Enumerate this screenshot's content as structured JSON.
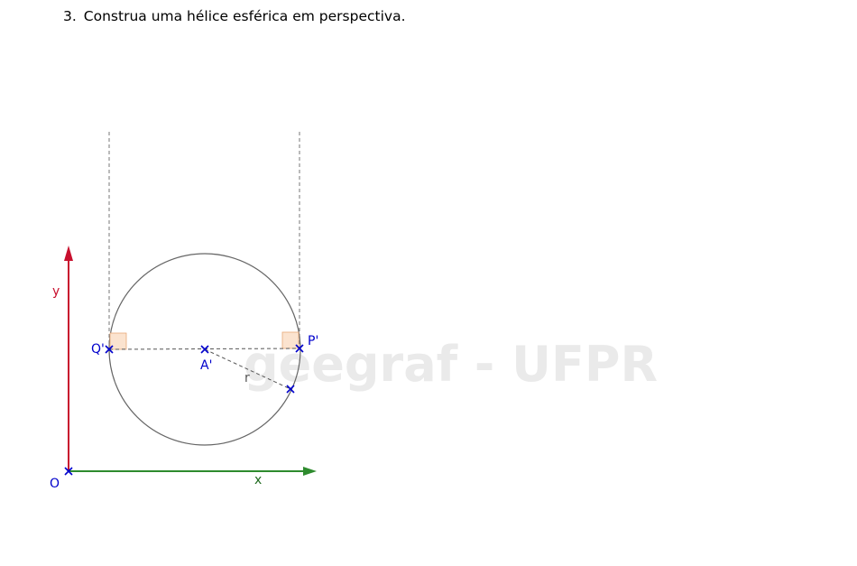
{
  "exercise": {
    "number": "3.",
    "text": "Construa uma hélice esférica em perspectiva."
  },
  "watermark": "geegraf - UFPR",
  "axes": {
    "y_label": "y",
    "x_label": "x",
    "origin_label": "O",
    "y_color": "#c8102e",
    "x_color": "#2e8b2e"
  },
  "points": {
    "center_label": "A'",
    "right_label": "P'",
    "left_label": "Q'",
    "radius_label": "r"
  },
  "colors": {
    "point": "#0000cc",
    "circle": "#666666",
    "dashed": "#666666",
    "right_angle_fill": "#fbe3cf",
    "right_angle_stroke": "#e8a878"
  }
}
